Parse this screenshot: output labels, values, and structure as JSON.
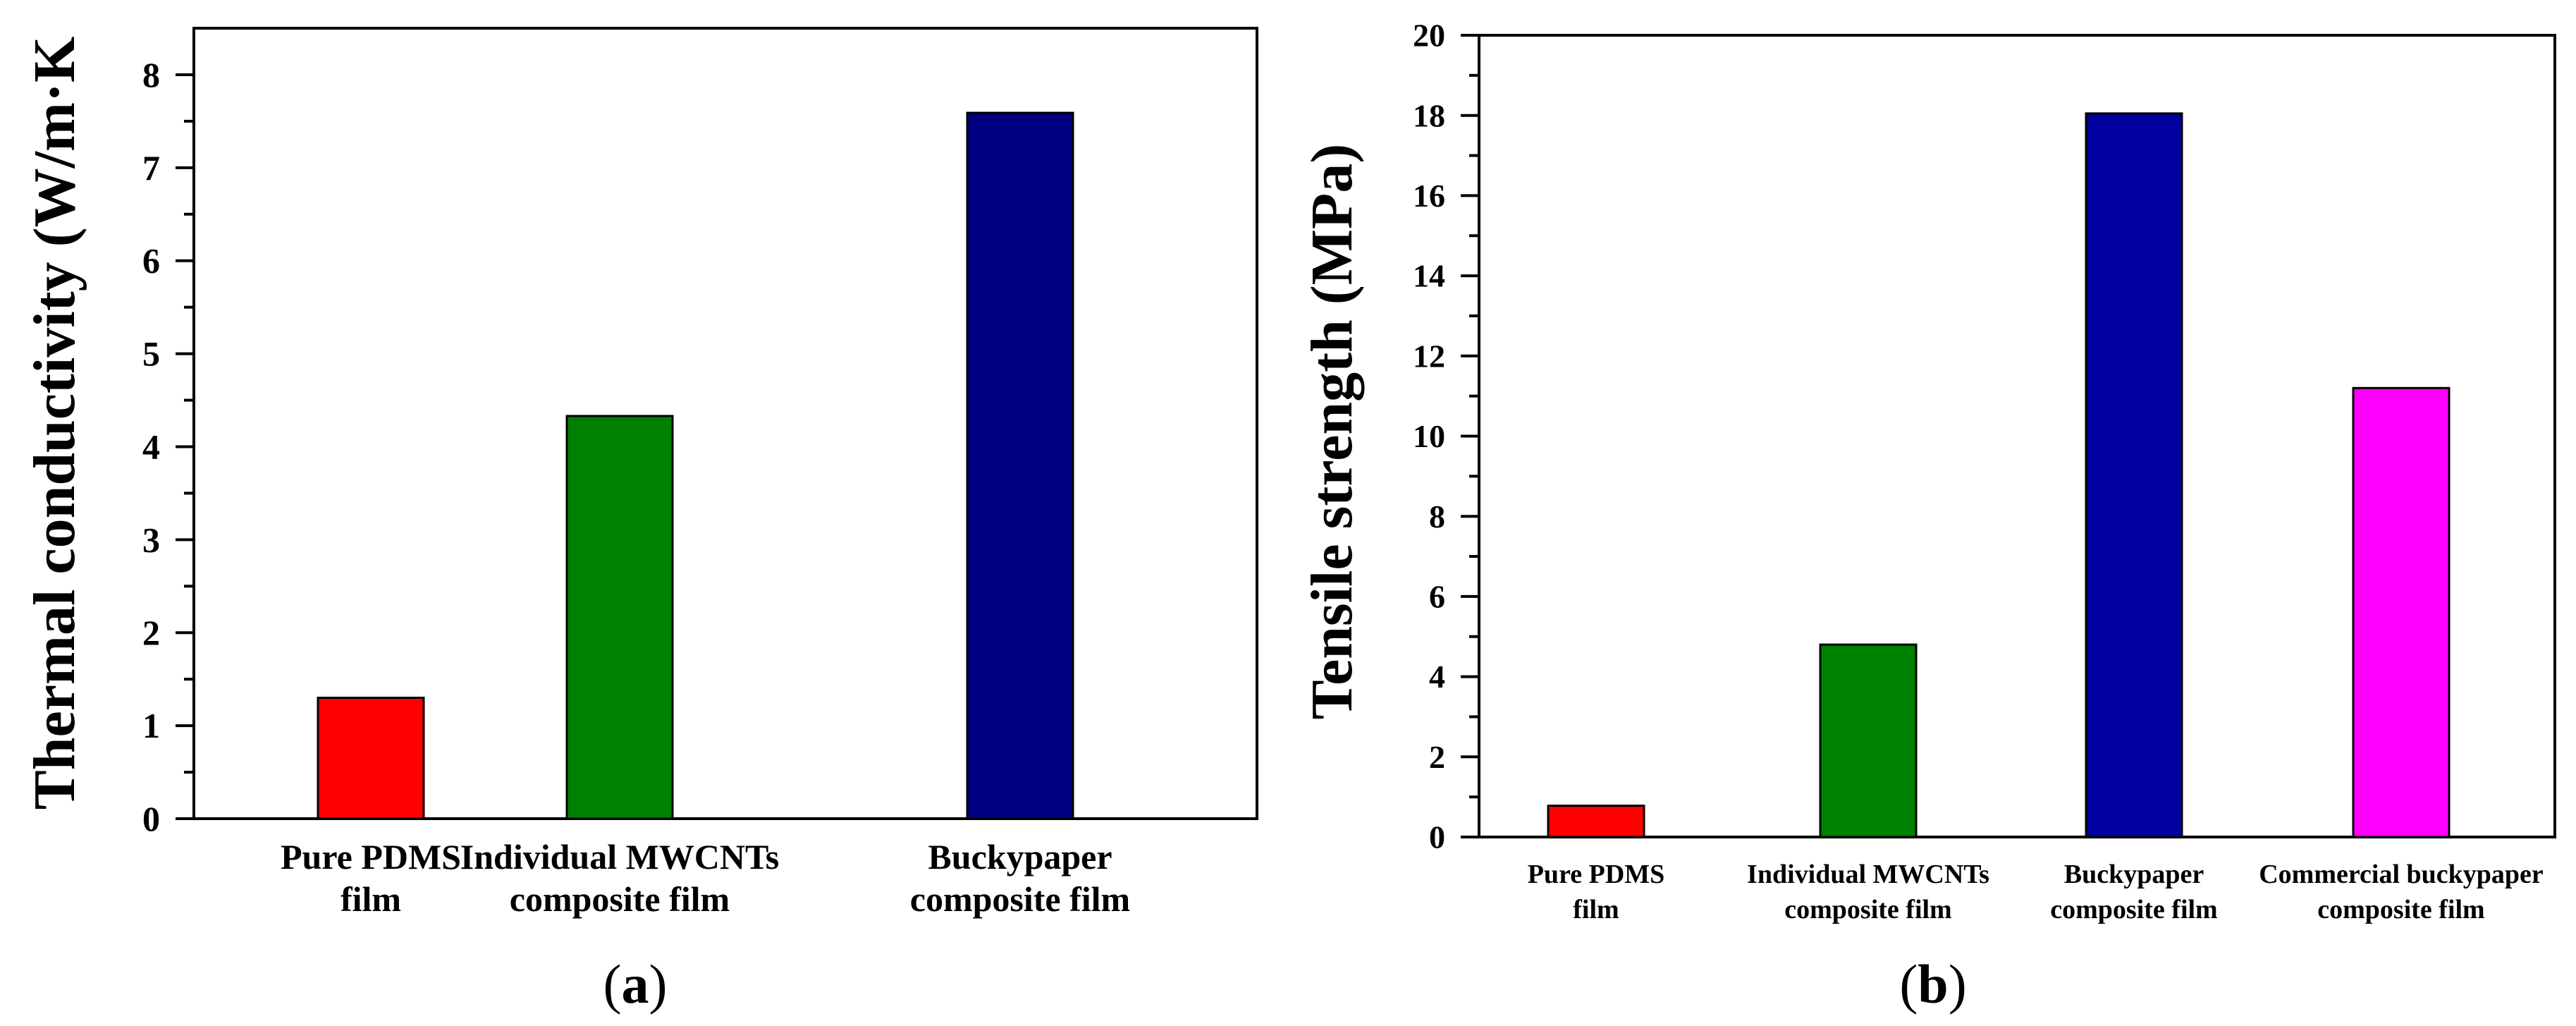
{
  "chart_data": [
    {
      "type": "bar",
      "panel_label": "a",
      "ylabel": "Thermal conductivity (W/m·K",
      "ylim": [
        0,
        8.5
      ],
      "yticks": [
        0,
        1,
        2,
        3,
        4,
        5,
        6,
        7,
        8
      ],
      "categories": [
        [
          "Pure PDMS",
          "film"
        ],
        [
          "Individual MWCNTs",
          "composite film"
        ],
        [
          "Buckypaper",
          "composite film"
        ]
      ],
      "values": [
        1.3,
        4.33,
        7.59
      ],
      "colors": [
        "#ff0000",
        "#008000",
        "#000080"
      ],
      "grid": false,
      "legend": "none"
    },
    {
      "type": "bar",
      "panel_label": "b",
      "ylabel": "Tensile strength (MPa)",
      "ylim": [
        0,
        20
      ],
      "yticks": [
        0,
        2,
        4,
        6,
        8,
        10,
        12,
        14,
        16,
        18,
        20
      ],
      "categories": [
        [
          "Pure PDMS",
          "film"
        ],
        [
          "Individual MWCNTs",
          "composite film"
        ],
        [
          "Buckypaper",
          "composite film"
        ],
        [
          "Commercial buckypaper",
          "composite film"
        ]
      ],
      "values": [
        0.78,
        4.8,
        18.05,
        11.2
      ],
      "colors": [
        "#ff0000",
        "#008000",
        "#0000a0",
        "#ff00ff"
      ],
      "grid": false,
      "legend": "none"
    }
  ]
}
